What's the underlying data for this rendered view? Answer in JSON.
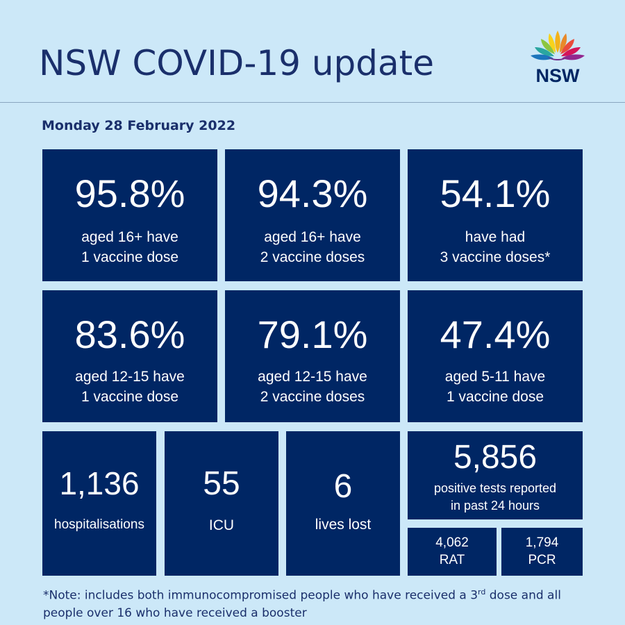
{
  "header": {
    "title": "NSW COVID-19 update",
    "logo_text": "NSW",
    "date": "Monday 28 February 2022"
  },
  "vaccination": [
    {
      "value": "95.8%",
      "line1": "aged 16+ have",
      "line2": "1 vaccine dose"
    },
    {
      "value": "94.3%",
      "line1": "aged 16+ have",
      "line2": "2 vaccine doses"
    },
    {
      "value": "54.1%",
      "line1": "have had",
      "line2": "3 vaccine doses*"
    },
    {
      "value": "83.6%",
      "line1": "aged 12-15 have",
      "line2": "1 vaccine dose"
    },
    {
      "value": "79.1%",
      "line1": "aged 12-15 have",
      "line2": "2 vaccine doses"
    },
    {
      "value": "47.4%",
      "line1": "aged 5-11 have",
      "line2": "1 vaccine dose"
    }
  ],
  "stats": {
    "hospitalisations": {
      "value": "1,136",
      "label": "hospitalisations"
    },
    "icu": {
      "value": "55",
      "label": "ICU"
    },
    "deaths": {
      "value": "6",
      "label": "lives lost"
    },
    "tests": {
      "value": "5,856",
      "line1": "positive tests reported",
      "line2": "in past 24 hours"
    },
    "rat": {
      "value": "4,062",
      "label": "RAT"
    },
    "pcr": {
      "value": "1,794",
      "label": "PCR"
    }
  },
  "note": {
    "part1": "*Note: includes both immunocompromised people who have received a 3",
    "sup": "rd",
    "part2": " dose and all people over 16 who have received a booster"
  },
  "colors": {
    "tile": "#002664",
    "background": "#cce8f8",
    "text": "#1a2f6b"
  }
}
